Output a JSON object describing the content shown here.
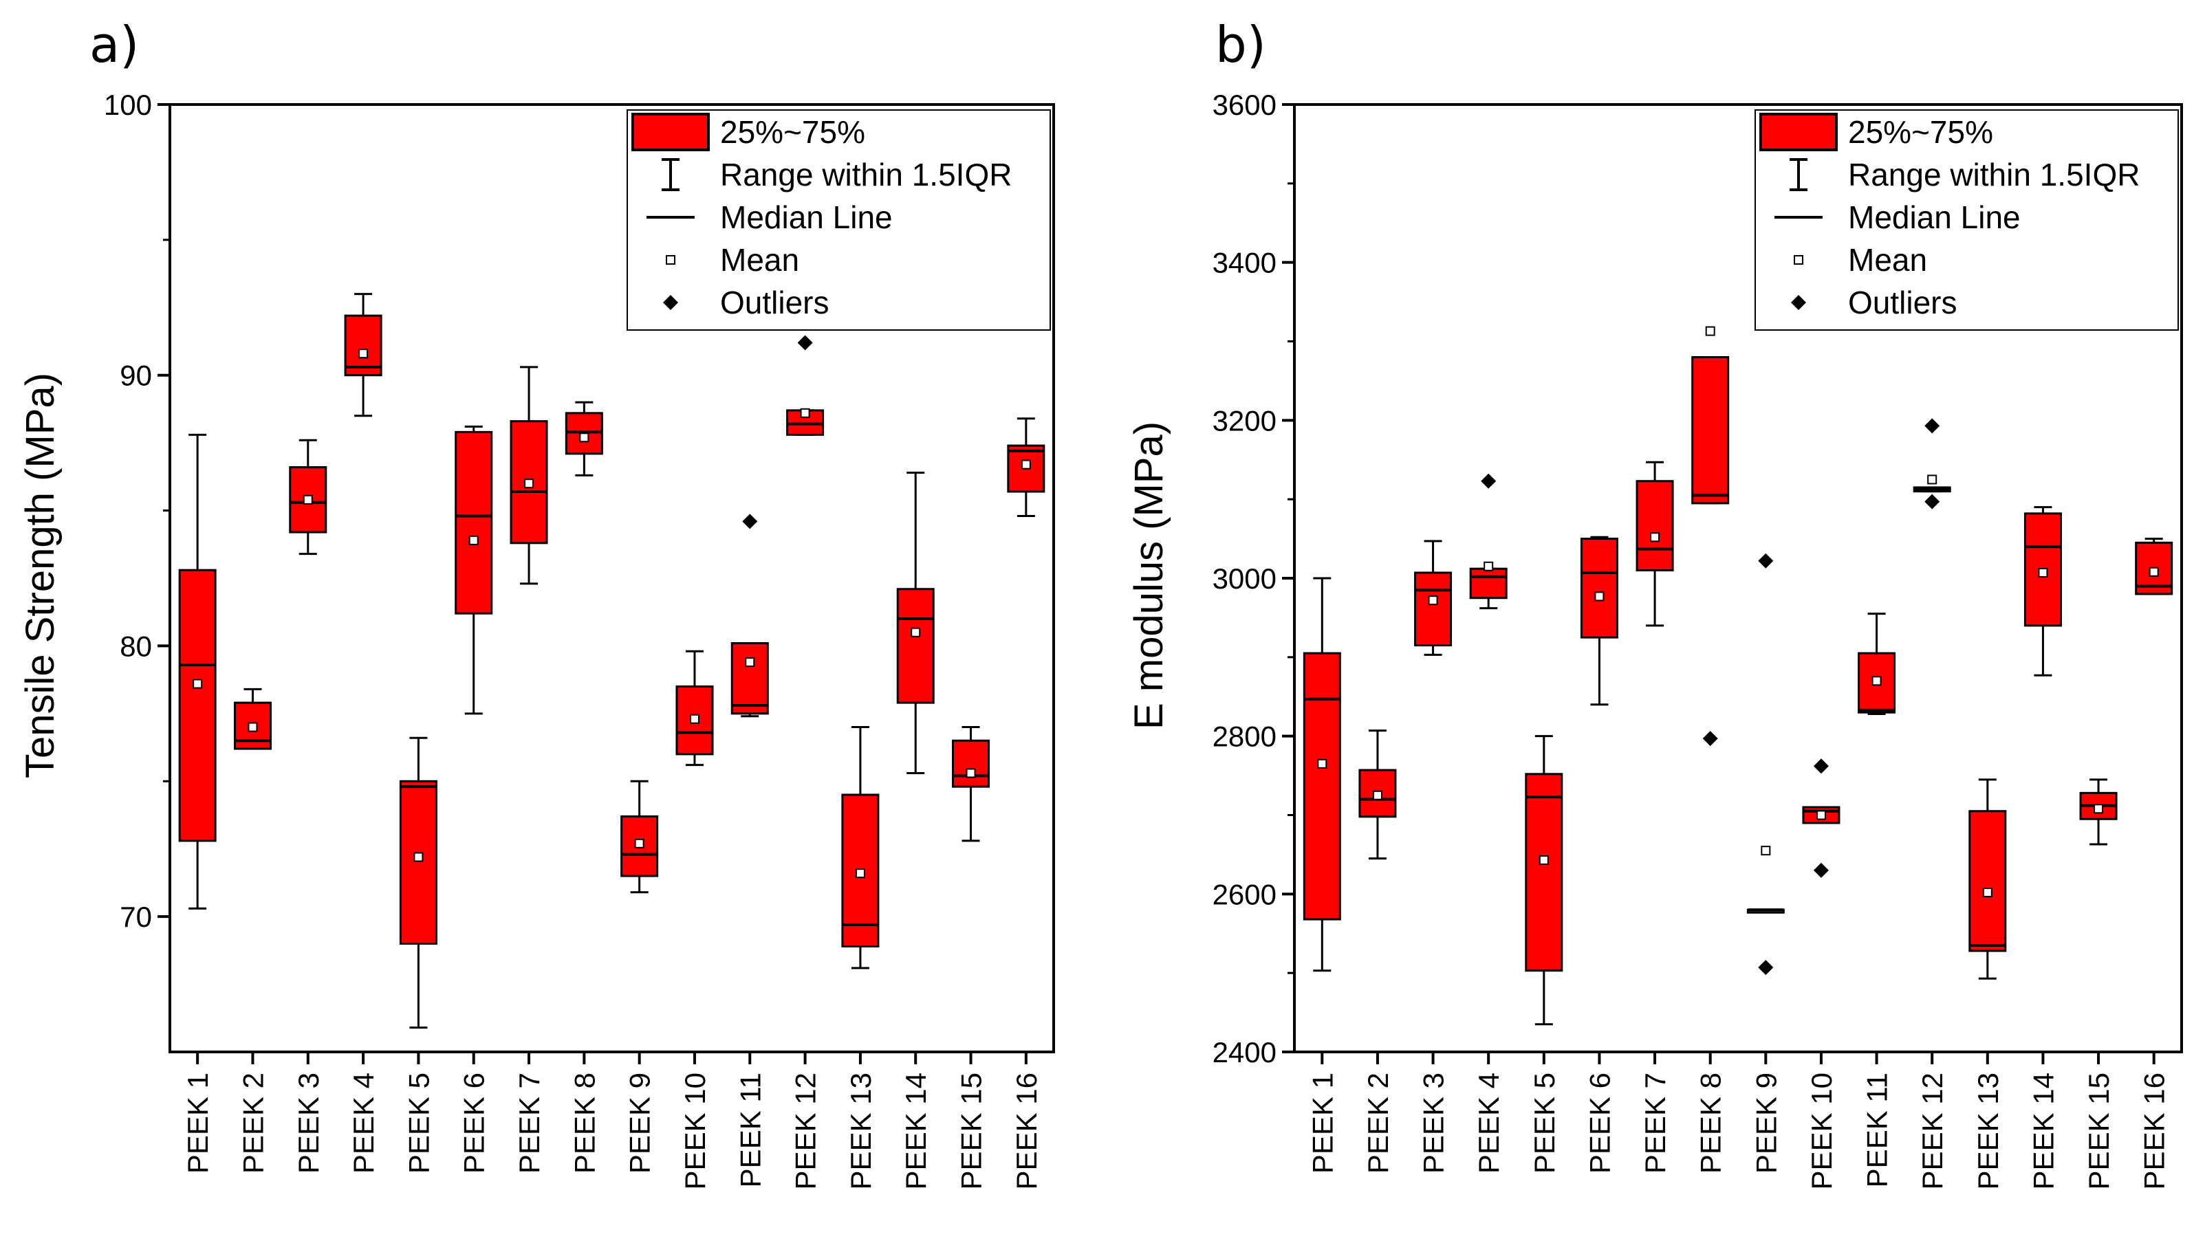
{
  "colors": {
    "box_fill": "#ff0000",
    "stroke": "#000000",
    "background": "#ffffff"
  },
  "legend": {
    "items": [
      {
        "symbol": "box",
        "label": "25%~75%"
      },
      {
        "symbol": "whisker",
        "label": "Range within 1.5IQR"
      },
      {
        "symbol": "median",
        "label": "Median Line"
      },
      {
        "symbol": "mean",
        "label": "Mean"
      },
      {
        "symbol": "outlier",
        "label": "Outliers"
      }
    ]
  },
  "chart_data": [
    {
      "type": "box",
      "panel": "a)",
      "ylabel": "Tensile Strength (MPa)",
      "ylim": [
        65,
        100
      ],
      "yticks": [
        70,
        80,
        90,
        100
      ],
      "yminor": [
        75,
        85,
        95
      ],
      "categories": [
        "PEEK 1",
        "PEEK 2",
        "PEEK 3",
        "PEEK 4",
        "PEEK 5",
        "PEEK 6",
        "PEEK 7",
        "PEEK 8",
        "PEEK 9",
        "PEEK 10",
        "PEEK 11",
        "PEEK 12",
        "PEEK 13",
        "PEEK 14",
        "PEEK 15",
        "PEEK 16"
      ],
      "boxes": [
        {
          "min": 70.3,
          "q1": 72.8,
          "median": 79.3,
          "q3": 82.8,
          "max": 87.8,
          "mean": 78.6,
          "outliers": []
        },
        {
          "min": 76.2,
          "q1": 76.2,
          "median": 76.5,
          "q3": 77.9,
          "max": 78.4,
          "mean": 77.0,
          "outliers": []
        },
        {
          "min": 83.4,
          "q1": 84.2,
          "median": 85.3,
          "q3": 86.6,
          "max": 87.6,
          "mean": 85.4,
          "outliers": []
        },
        {
          "min": 88.5,
          "q1": 90.0,
          "median": 90.3,
          "q3": 92.2,
          "max": 93.0,
          "mean": 90.8,
          "outliers": []
        },
        {
          "min": 65.9,
          "q1": 69.0,
          "median": 74.8,
          "q3": 75.0,
          "max": 76.6,
          "mean": 72.2,
          "outliers": []
        },
        {
          "min": 77.5,
          "q1": 81.2,
          "median": 84.8,
          "q3": 87.9,
          "max": 88.1,
          "mean": 83.9,
          "outliers": []
        },
        {
          "min": 82.3,
          "q1": 83.8,
          "median": 85.7,
          "q3": 88.3,
          "max": 90.3,
          "mean": 86.0,
          "outliers": []
        },
        {
          "min": 86.3,
          "q1": 87.1,
          "median": 87.9,
          "q3": 88.6,
          "max": 89.0,
          "mean": 87.7,
          "outliers": []
        },
        {
          "min": 70.9,
          "q1": 71.5,
          "median": 72.3,
          "q3": 73.7,
          "max": 75.0,
          "mean": 72.7,
          "outliers": []
        },
        {
          "min": 75.6,
          "q1": 76.0,
          "median": 76.8,
          "q3": 78.5,
          "max": 79.8,
          "mean": 77.3,
          "outliers": []
        },
        {
          "min": 77.4,
          "q1": 77.5,
          "median": 77.8,
          "q3": 80.1,
          "max": 80.1,
          "mean": 79.4,
          "outliers": [
            84.6
          ]
        },
        {
          "min": 87.8,
          "q1": 87.8,
          "median": 88.2,
          "q3": 88.7,
          "max": 88.7,
          "mean": 88.6,
          "outliers": [
            91.2
          ]
        },
        {
          "min": 68.1,
          "q1": 68.9,
          "median": 69.7,
          "q3": 74.5,
          "max": 77.0,
          "mean": 71.6,
          "outliers": []
        },
        {
          "min": 75.3,
          "q1": 77.9,
          "median": 81.0,
          "q3": 82.1,
          "max": 86.4,
          "mean": 80.5,
          "outliers": []
        },
        {
          "min": 72.8,
          "q1": 74.8,
          "median": 75.2,
          "q3": 76.5,
          "max": 77.0,
          "mean": 75.3,
          "outliers": []
        },
        {
          "min": 84.8,
          "q1": 85.7,
          "median": 87.2,
          "q3": 87.4,
          "max": 88.4,
          "mean": 86.7,
          "outliers": []
        }
      ]
    },
    {
      "type": "box",
      "panel": "b)",
      "ylabel": "E modulus (MPa)",
      "ylim": [
        2400,
        3600
      ],
      "yticks": [
        2400,
        2600,
        2800,
        3000,
        3200,
        3400,
        3600
      ],
      "yminor": [
        2500,
        2700,
        2900,
        3100,
        3300,
        3500
      ],
      "categories": [
        "PEEK 1",
        "PEEK 2",
        "PEEK 3",
        "PEEK 4",
        "PEEK 5",
        "PEEK 6",
        "PEEK 7",
        "PEEK 8",
        "PEEK 9",
        "PEEK 10",
        "PEEK 11",
        "PEEK 12",
        "PEEK 13",
        "PEEK 14",
        "PEEK 15",
        "PEEK 16"
      ],
      "boxes": [
        {
          "min": 2503,
          "q1": 2568,
          "median": 2847,
          "q3": 2905,
          "max": 3000,
          "mean": 2765,
          "outliers": []
        },
        {
          "min": 2645,
          "q1": 2698,
          "median": 2720,
          "q3": 2757,
          "max": 2807,
          "mean": 2725,
          "outliers": []
        },
        {
          "min": 2903,
          "q1": 2915,
          "median": 2985,
          "q3": 3007,
          "max": 3047,
          "mean": 2972,
          "outliers": []
        },
        {
          "min": 2962,
          "q1": 2975,
          "median": 3002,
          "q3": 3012,
          "max": 3012,
          "mean": 3015,
          "outliers": [
            3123
          ]
        },
        {
          "min": 2435,
          "q1": 2503,
          "median": 2723,
          "q3": 2752,
          "max": 2800,
          "mean": 2643,
          "outliers": []
        },
        {
          "min": 2840,
          "q1": 2925,
          "median": 3007,
          "q3": 3050,
          "max": 3052,
          "mean": 2977,
          "outliers": []
        },
        {
          "min": 2940,
          "q1": 3010,
          "median": 3037,
          "q3": 3123,
          "max": 3147,
          "mean": 3052,
          "outliers": []
        },
        {
          "min": 3095,
          "q1": 3095,
          "median": 3105,
          "q3": 3280,
          "max": 3280,
          "mean": 3313,
          "outliers": [
            2797
          ]
        },
        {
          "min": 2580,
          "q1": 2580,
          "median": 2580,
          "q3": 2580,
          "max": 2580,
          "mean": 2655,
          "outliers": [
            3022,
            2507
          ]
        },
        {
          "min": 2690,
          "q1": 2690,
          "median": 2705,
          "q3": 2710,
          "max": 2710,
          "mean": 2700,
          "outliers": [
            2762,
            2630
          ]
        },
        {
          "min": 2828,
          "q1": 2830,
          "median": 2833,
          "q3": 2905,
          "max": 2955,
          "mean": 2870,
          "outliers": []
        },
        {
          "min": 3110,
          "q1": 3110,
          "median": 3113,
          "q3": 3115,
          "max": 3115,
          "mean": 3125,
          "outliers": [
            3193,
            3097
          ]
        },
        {
          "min": 2493,
          "q1": 2528,
          "median": 2535,
          "q3": 2705,
          "max": 2745,
          "mean": 2602,
          "outliers": []
        },
        {
          "min": 2877,
          "q1": 2940,
          "median": 3040,
          "q3": 3082,
          "max": 3090,
          "mean": 3007,
          "outliers": []
        },
        {
          "min": 2663,
          "q1": 2695,
          "median": 2712,
          "q3": 2728,
          "max": 2745,
          "mean": 2708,
          "outliers": []
        },
        {
          "min": 2980,
          "q1": 2980,
          "median": 2990,
          "q3": 3045,
          "max": 3050,
          "mean": 3008,
          "outliers": []
        }
      ]
    }
  ]
}
